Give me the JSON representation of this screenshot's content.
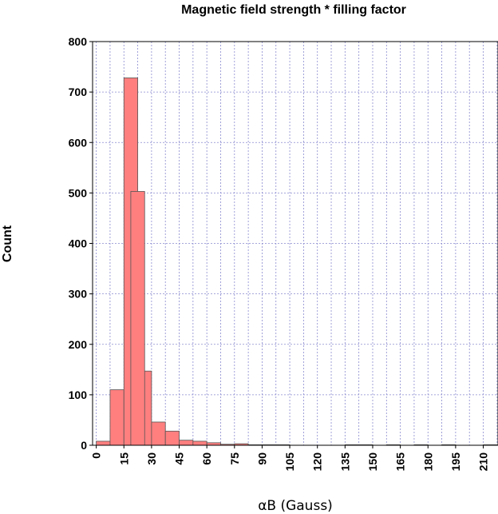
{
  "chart_data": {
    "type": "bar",
    "title": "Magnetic field strength * filling factor",
    "xlabel": "αB (Gauss)",
    "ylabel": "Count",
    "xlim": [
      -2,
      218
    ],
    "ylim": [
      0,
      800
    ],
    "x_ticks": [
      0,
      15,
      30,
      45,
      60,
      75,
      90,
      105,
      120,
      135,
      150,
      165,
      180,
      195,
      210
    ],
    "y_ticks": [
      0,
      100,
      200,
      300,
      400,
      500,
      600,
      700,
      800
    ],
    "bin_width": 7.5,
    "bins": [
      {
        "x0": 0,
        "count": 8
      },
      {
        "x0": 7.5,
        "count": 110
      },
      {
        "x0": 15,
        "count": 728
      },
      {
        "x0": 22.5,
        "count": 147
      },
      {
        "x0": 30,
        "count": 46
      },
      {
        "x0": 37.5,
        "count": 28
      },
      {
        "x0": 45,
        "count": 10
      },
      {
        "x0": 52.5,
        "count": 8
      },
      {
        "x0": 60,
        "count": 5
      },
      {
        "x0": 67.5,
        "count": 2
      },
      {
        "x0": 75,
        "count": 3
      },
      {
        "x0": 82.5,
        "count": 1
      },
      {
        "x0": 90,
        "count": 1
      },
      {
        "x0": 97.5,
        "count": 1
      },
      {
        "x0": 135,
        "count": 1
      },
      {
        "x0": 142.5,
        "count": 1
      },
      {
        "x0": 157.5,
        "count": 1
      },
      {
        "x0": 172.5,
        "count": 1
      },
      {
        "x0": 187.5,
        "count": 1
      },
      {
        "x0": 210,
        "count": 1
      }
    ],
    "extra_bar": {
      "x0": 18.75,
      "x1": 26.25,
      "count": 503
    },
    "bar_color": "#ff7f7f",
    "grid": true
  }
}
